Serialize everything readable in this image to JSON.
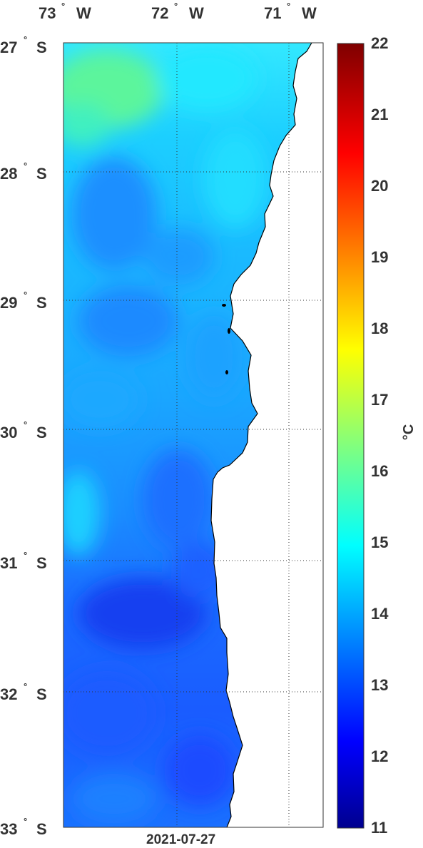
{
  "map": {
    "date": "2021-07-27",
    "lon_labels": [
      {
        "value": "73",
        "dir": "W"
      },
      {
        "value": "72",
        "dir": "W"
      },
      {
        "value": "71",
        "dir": "W"
      }
    ],
    "lat_labels": [
      {
        "value": "27",
        "dir": "S"
      },
      {
        "value": "28",
        "dir": "S"
      },
      {
        "value": "29",
        "dir": "S"
      },
      {
        "value": "30",
        "dir": "S"
      },
      {
        "value": "31",
        "dir": "S"
      },
      {
        "value": "32",
        "dir": "S"
      },
      {
        "value": "33",
        "dir": "S"
      }
    ],
    "degree_symbol": "°",
    "land_color": "#ffffff",
    "grid": "dotted"
  },
  "colorbar": {
    "unit_label": "°C",
    "min": 11,
    "max": 22,
    "ticks": [
      "22",
      "21",
      "20",
      "19",
      "18",
      "17",
      "16",
      "15",
      "14",
      "13",
      "12",
      "11"
    ],
    "colormap": "jet"
  }
}
